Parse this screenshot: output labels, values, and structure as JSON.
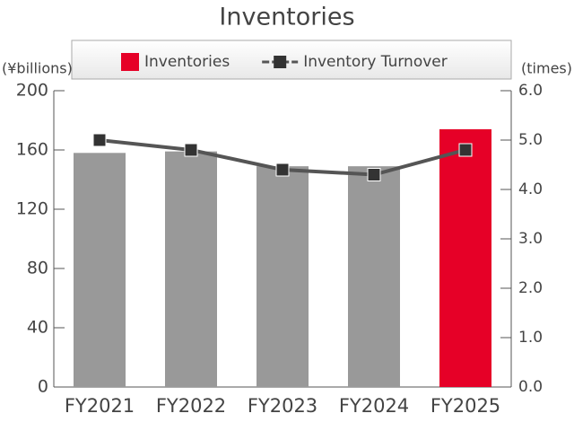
{
  "chart_data": {
    "type": "bar",
    "title": "Inventories",
    "y_label": "(¥billions)",
    "y2_label": "(times)",
    "categories": [
      "FY2021",
      "FY2022",
      "FY2023",
      "FY2024",
      "FY2025"
    ],
    "series": [
      {
        "name": "Inventories",
        "type": "bar",
        "color": "#e60027",
        "colors": [
          "#999999",
          "#999999",
          "#999999",
          "#999999",
          "#e60027"
        ],
        "values": [
          158,
          159,
          149,
          149,
          174
        ]
      },
      {
        "name": "Inventory Turnover",
        "type": "line",
        "color": "#555555",
        "marker_color": "#333333",
        "axis": "y2",
        "values": [
          5.0,
          4.8,
          4.4,
          4.3,
          4.8
        ]
      }
    ],
    "ylim": [
      0,
      200
    ],
    "yticks": [
      0,
      40,
      80,
      120,
      160,
      200
    ],
    "y2lim": [
      0,
      6
    ],
    "y2ticks": [
      {
        "value": 0,
        "label": "0.0"
      },
      {
        "value": 1,
        "label": "1.0"
      },
      {
        "value": 2,
        "label": "2.0"
      },
      {
        "value": 3,
        "label": "3.0"
      },
      {
        "value": 4,
        "label": "4.0"
      },
      {
        "value": 5,
        "label": "5.0"
      },
      {
        "value": 6,
        "label": "6.0"
      }
    ],
    "legend": "top"
  }
}
